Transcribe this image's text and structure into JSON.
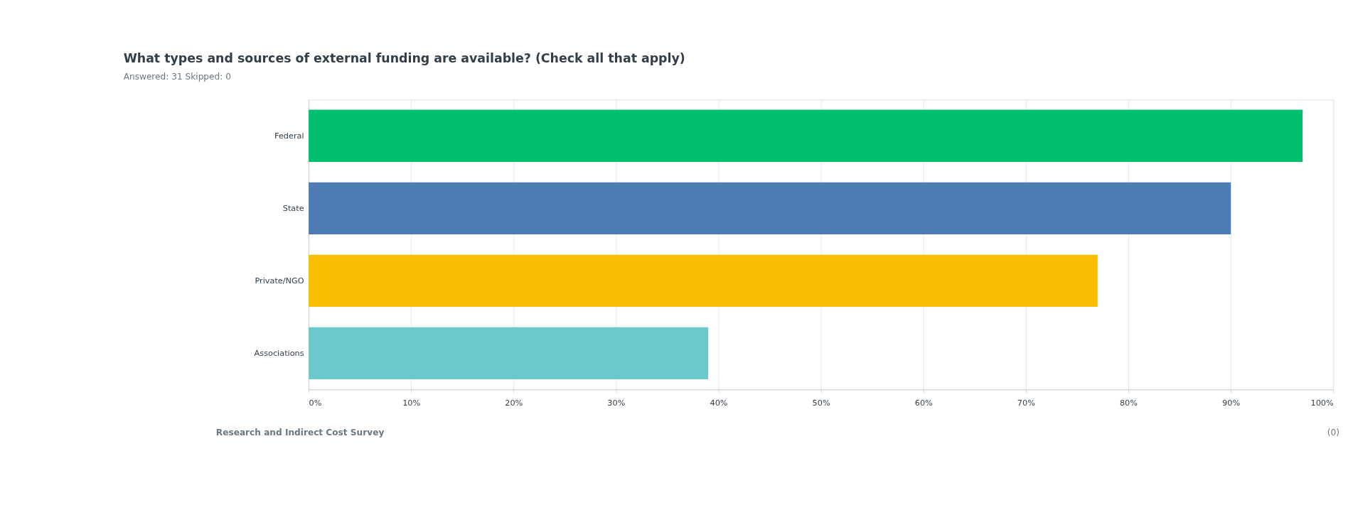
{
  "chart_data": {
    "type": "bar",
    "orientation": "horizontal",
    "title": "What types and sources of external funding are available? (Check all that apply)",
    "subtitle": "Answered: 31    Skipped: 0",
    "categories": [
      "Federal",
      "State",
      "Private/NGO",
      "Associations"
    ],
    "values": [
      97,
      90,
      77,
      39
    ],
    "colors": [
      "#00bf6f",
      "#507cb6",
      "#f9be00",
      "#6bc8cd"
    ],
    "xlim": [
      0,
      100
    ],
    "xticks": [
      {
        "value": 0,
        "label": "0%"
      },
      {
        "value": 10,
        "label": "10%"
      },
      {
        "value": 20,
        "label": "20%"
      },
      {
        "value": 30,
        "label": "30%"
      },
      {
        "value": 40,
        "label": "40%"
      },
      {
        "value": 50,
        "label": "50%"
      },
      {
        "value": 60,
        "label": "60%"
      },
      {
        "value": 70,
        "label": "70%"
      },
      {
        "value": 80,
        "label": "80%"
      },
      {
        "value": 90,
        "label": "90%"
      },
      {
        "value": 100,
        "label": "100%"
      }
    ],
    "grid": "x",
    "legend": false,
    "annotations": [
      "Research and Indirect Cost Survey",
      "(0)"
    ]
  }
}
